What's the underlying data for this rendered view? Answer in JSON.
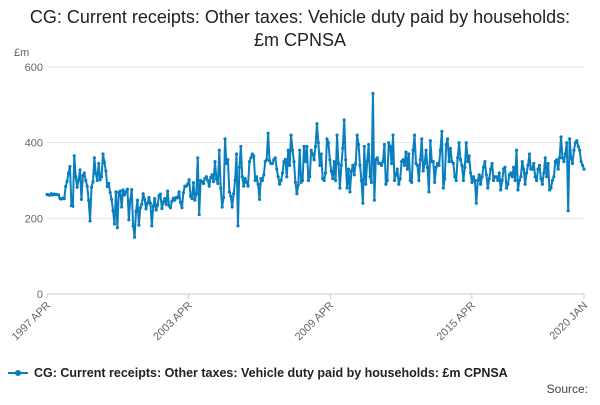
{
  "chart_data": {
    "type": "line",
    "title": "CG: Current receipts: Other taxes: Vehicle duty paid by households: £m CPNSA",
    "ylabel": "£m",
    "xlabel": "",
    "ylim": [
      0,
      600
    ],
    "yticks": [
      0,
      200,
      400,
      600
    ],
    "xticks": [
      {
        "label": "1997 APR",
        "date": "1997-04"
      },
      {
        "label": "2003 APR",
        "date": "2003-04"
      },
      {
        "label": "2009 APR",
        "date": "2009-04"
      },
      {
        "label": "2015 APR",
        "date": "2015-04"
      },
      {
        "label": "2020 JAN",
        "date": "2020-01"
      }
    ],
    "grid": "horizontal",
    "legend_position": "bottom",
    "x_start": "1997-04",
    "x_end": "2020-01",
    "series": [
      {
        "name": "CG: Current receipts: Other taxes: Vehicle duty paid by households: £m CPNSA",
        "color": "#0b7fbd",
        "values": [
          263,
          262,
          261,
          265,
          262,
          264,
          263,
          263,
          262,
          252,
          251,
          253,
          252,
          284,
          298,
          320,
          337,
          234,
          232,
          365,
          310,
          282,
          302,
          328,
          250,
          313,
          320,
          300,
          285,
          248,
          193,
          282,
          296,
          360,
          318,
          300,
          345,
          302,
          310,
          370,
          348,
          325,
          284,
          292,
          268,
          250,
          220,
          185,
          270,
          175,
          268,
          272,
          230,
          275,
          262,
          270,
          277,
          196,
          247,
          276,
          180,
          150,
          218,
          248,
          182,
          228,
          237,
          265,
          250,
          225,
          240,
          255,
          240,
          180,
          232,
          252,
          222,
          235,
          260,
          264,
          226,
          243,
          252,
          237,
          272,
          233,
          228,
          245,
          253,
          248,
          255,
          254,
          270,
          242,
          228,
          268,
          285,
          285,
          290,
          302,
          258,
          252,
          294,
          248,
          265,
          360,
          210,
          300,
          297,
          292,
          305,
          310,
          300,
          285,
          308,
          315,
          297,
          350,
          304,
          292,
          380,
          280,
          230,
          255,
          410,
          345,
          355,
          270,
          258,
          230,
          265,
          300,
          370,
          180,
          335,
          390,
          310,
          285,
          305,
          295,
          285,
          350,
          360,
          370,
          365,
          300,
          310,
          290,
          250,
          305,
          300,
          315,
          350,
          355,
          425,
          352,
          345,
          345,
          355,
          360,
          330,
          310,
          290,
          300,
          320,
          350,
          356,
          310,
          380,
          340,
          420,
          380,
          350,
          295,
          265,
          288,
          380,
          295,
          300,
          390,
          350,
          390,
          300,
          310,
          380,
          370,
          355,
          390,
          450,
          400,
          340,
          370,
          305,
          300,
          320,
          410,
          400,
          355,
          325,
          305,
          350,
          300,
          420,
          345,
          280,
          340,
          385,
          460,
          355,
          280,
          330,
          270,
          325,
          340,
          315,
          345,
          420,
          395,
          340,
          300,
          240,
          390,
          290,
          350,
          395,
          310,
          295,
          530,
          248,
          355,
          360,
          345,
          345,
          340,
          350,
          395,
          290,
          300,
          400,
          390,
          345,
          420,
          300,
          315,
          330,
          290,
          305,
          350,
          355,
          340,
          375,
          330,
          370,
          300,
          295,
          380,
          420,
          345,
          340,
          300,
          355,
          410,
          325,
          345,
          380,
          335,
          270,
          405,
          350,
          350,
          295,
          335,
          345,
          340,
          380,
          430,
          280,
          305,
          395,
          410,
          350,
          385,
          350,
          345,
          310,
          300,
          360,
          400,
          355,
          340,
          300,
          335,
          400,
          350,
          365,
          320,
          295,
          310,
          300,
          240,
          300,
          315,
          290,
          310,
          335,
          350,
          315,
          280,
          305,
          330,
          345,
          300,
          310,
          310,
          300,
          320,
          275,
          300,
          330,
          335,
          280,
          290,
          315,
          320,
          310,
          335,
          300,
          380,
          275,
          300,
          310,
          350,
          330,
          290,
          320,
          340,
          370,
          330,
          330,
          345,
          310,
          300,
          330,
          340,
          305,
          290,
          320,
          360,
          310,
          345,
          275,
          280,
          300,
          310,
          350,
          355,
          330,
          360,
          415,
          360,
          350,
          370,
          400,
          220,
          410,
          360,
          345,
          380,
          400,
          405,
          390,
          380,
          350,
          340,
          330
        ]
      }
    ]
  },
  "source_label": "Source:"
}
